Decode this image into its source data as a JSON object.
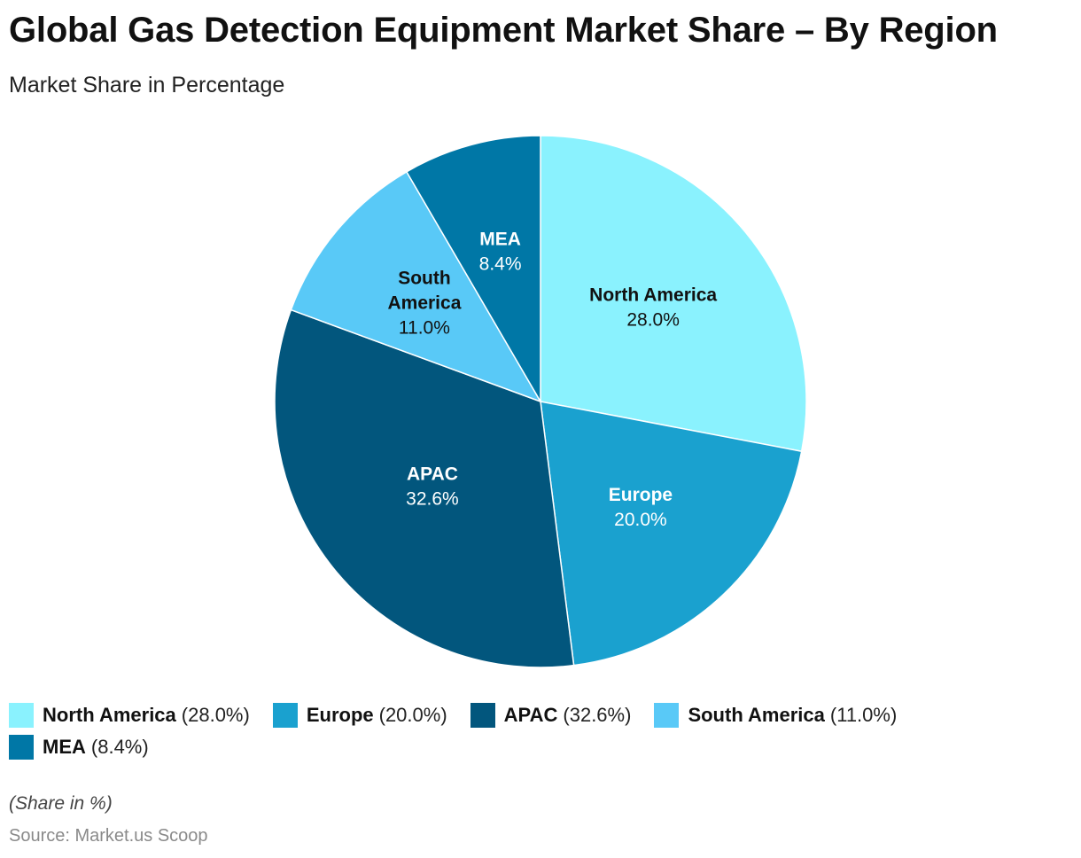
{
  "header": {
    "title": "Global Gas Detection Equipment Market Share – By Region",
    "subtitle": "Market Share in Percentage"
  },
  "chart_data": {
    "type": "pie",
    "title": "Global Gas Detection Equipment Market Share – By Region",
    "subtitle": "Market Share in Percentage",
    "start_angle_deg": 0,
    "direction": "clockwise",
    "slices": [
      {
        "label": "North America",
        "value": 28.0,
        "value_text": "28.0%",
        "legend_value": "(28.0%)",
        "color": "#8af2fe",
        "label_color": "#111111"
      },
      {
        "label": "Europe",
        "value": 20.0,
        "value_text": "20.0%",
        "legend_value": "(20.0%)",
        "color": "#1aa1cf",
        "label_color": "#ffffff"
      },
      {
        "label": "APAC",
        "value": 32.6,
        "value_text": "32.6%",
        "legend_value": "(32.6%)",
        "color": "#02567d",
        "label_color": "#ffffff"
      },
      {
        "label": "South America",
        "value": 11.0,
        "value_text": "11.0%",
        "legend_value": "(11.0%)",
        "color": "#59c9f7",
        "label_color": "#111111"
      },
      {
        "label": "MEA",
        "value": 8.4,
        "value_text": "8.4%",
        "legend_value": "(8.4%)",
        "color": "#0077a6",
        "label_color": "#ffffff"
      }
    ],
    "legend_position": "bottom-left"
  },
  "footer": {
    "note": "(Share in %)",
    "source": "Source: Market.us Scoop"
  }
}
